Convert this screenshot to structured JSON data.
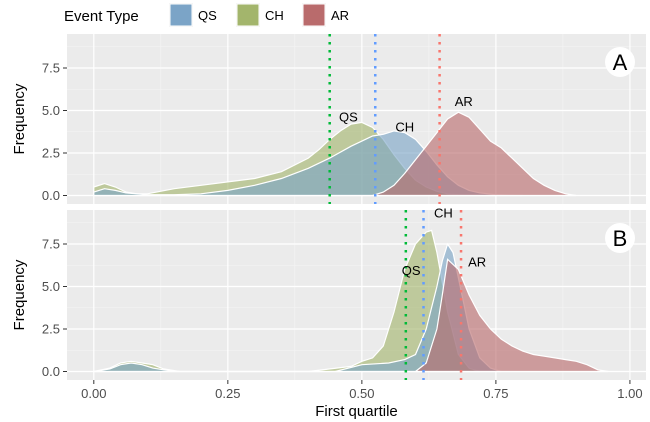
{
  "chart_data": {
    "type": "area",
    "subtype": "density",
    "xlabel": "First quartile",
    "ylabel": "Frequency",
    "xlim": [
      -0.05,
      1.03
    ],
    "ylim": [
      -0.5,
      9.5
    ],
    "x_ticks": [
      0.0,
      0.25,
      0.5,
      0.75,
      1.0
    ],
    "x_tick_labels": [
      "0.00",
      "0.25",
      "0.50",
      "0.75",
      "1.00"
    ],
    "y_ticks": [
      0.0,
      2.5,
      5.0,
      7.5
    ],
    "y_tick_labels": [
      "0.0",
      "2.5",
      "5.0",
      "7.5"
    ],
    "grid": true,
    "legend": {
      "title": "Event Type",
      "position": "top-left",
      "entries": [
        {
          "name": "QS",
          "color": "#7ba4c7"
        },
        {
          "name": "CH",
          "color": "#a3b56c"
        },
        {
          "name": "AR",
          "color": "#b96b6c"
        }
      ]
    },
    "series_colors": {
      "QS": "#7ba4c7",
      "CH": "#a3b56c",
      "AR": "#b96b6c"
    },
    "mean_line_colors": {
      "QS": "#619cff",
      "CH": "#00ba38",
      "AR": "#f8766d"
    },
    "panels": [
      {
        "tag": "A",
        "means": {
          "CH": 0.44,
          "QS": 0.525,
          "AR": 0.645
        },
        "labels": [
          {
            "text": "QS",
            "x": 0.475,
            "y": 4.6
          },
          {
            "text": "CH",
            "x": 0.58,
            "y": 4.0
          },
          {
            "text": "AR",
            "x": 0.69,
            "y": 5.5
          }
        ],
        "series": [
          {
            "name": "CH",
            "x": [
              0.0,
              0.02,
              0.04,
              0.06,
              0.08,
              0.1,
              0.15,
              0.2,
              0.25,
              0.3,
              0.35,
              0.4,
              0.42,
              0.44,
              0.46,
              0.48,
              0.5,
              0.52,
              0.54,
              0.56,
              0.58,
              0.6,
              0.62,
              0.64,
              0.66,
              0.68,
              0.7,
              0.72,
              0.75
            ],
            "y": [
              0.5,
              0.7,
              0.5,
              0.2,
              0.1,
              0.1,
              0.4,
              0.6,
              0.8,
              1.0,
              1.4,
              2.2,
              2.7,
              3.3,
              3.8,
              4.2,
              4.3,
              4.0,
              3.3,
              2.4,
              1.6,
              0.9,
              0.5,
              0.25,
              0.1,
              0.05,
              0.02,
              0.0,
              0.0
            ]
          },
          {
            "name": "QS",
            "x": [
              0.0,
              0.02,
              0.04,
              0.06,
              0.08,
              0.1,
              0.15,
              0.2,
              0.25,
              0.3,
              0.35,
              0.4,
              0.44,
              0.48,
              0.5,
              0.52,
              0.54,
              0.56,
              0.58,
              0.6,
              0.62,
              0.64,
              0.66,
              0.68,
              0.7,
              0.72,
              0.75,
              0.8
            ],
            "y": [
              0.2,
              0.4,
              0.3,
              0.15,
              0.1,
              0.05,
              0.05,
              0.1,
              0.3,
              0.6,
              1.0,
              1.6,
              2.2,
              2.9,
              3.2,
              3.5,
              3.6,
              3.8,
              3.7,
              3.3,
              2.6,
              1.8,
              1.1,
              0.6,
              0.3,
              0.15,
              0.05,
              0.0
            ]
          },
          {
            "name": "AR",
            "x": [
              0.52,
              0.54,
              0.56,
              0.58,
              0.6,
              0.62,
              0.64,
              0.66,
              0.68,
              0.7,
              0.72,
              0.74,
              0.76,
              0.78,
              0.8,
              0.82,
              0.84,
              0.86,
              0.88,
              0.9
            ],
            "y": [
              0.0,
              0.2,
              0.6,
              1.3,
              2.1,
              2.9,
              3.7,
              4.5,
              4.9,
              4.6,
              3.9,
              3.2,
              2.8,
              2.2,
              1.6,
              1.0,
              0.6,
              0.3,
              0.1,
              0.0
            ]
          }
        ]
      },
      {
        "tag": "B",
        "means": {
          "CH": 0.582,
          "QS": 0.615,
          "AR": 0.685
        },
        "labels": [
          {
            "text": "CH",
            "x": 0.652,
            "y": 9.3
          },
          {
            "text": "QS",
            "x": 0.592,
            "y": 5.9
          },
          {
            "text": "AR",
            "x": 0.715,
            "y": 6.4
          }
        ],
        "series": [
          {
            "name": "CH",
            "x": [
              0.0,
              0.03,
              0.05,
              0.07,
              0.09,
              0.11,
              0.13,
              0.16,
              0.2,
              0.4,
              0.48,
              0.5,
              0.52,
              0.54,
              0.56,
              0.58,
              0.6,
              0.62,
              0.63,
              0.64,
              0.66,
              0.68,
              0.7,
              0.72
            ],
            "y": [
              0.0,
              0.2,
              0.5,
              0.6,
              0.5,
              0.4,
              0.15,
              0.0,
              0.0,
              0.0,
              0.3,
              0.6,
              0.8,
              1.5,
              3.5,
              6.0,
              7.5,
              8.2,
              8.3,
              7.0,
              3.5,
              1.0,
              0.2,
              0.0
            ]
          },
          {
            "name": "QS",
            "x": [
              0.0,
              0.03,
              0.05,
              0.07,
              0.09,
              0.11,
              0.13,
              0.16,
              0.2,
              0.45,
              0.5,
              0.55,
              0.58,
              0.6,
              0.62,
              0.64,
              0.65,
              0.66,
              0.67,
              0.68,
              0.7,
              0.72,
              0.74,
              0.76
            ],
            "y": [
              0.0,
              0.15,
              0.4,
              0.5,
              0.4,
              0.2,
              0.1,
              0.0,
              0.0,
              0.0,
              0.4,
              0.5,
              0.7,
              1.0,
              2.5,
              5.0,
              6.5,
              7.5,
              7.0,
              5.5,
              2.5,
              0.8,
              0.2,
              0.0
            ]
          },
          {
            "name": "AR",
            "x": [
              0.6,
              0.62,
              0.64,
              0.65,
              0.66,
              0.68,
              0.7,
              0.72,
              0.74,
              0.76,
              0.78,
              0.8,
              0.82,
              0.84,
              0.86,
              0.88,
              0.9,
              0.92,
              0.94,
              0.96
            ],
            "y": [
              0.0,
              0.5,
              2.5,
              4.5,
              6.6,
              6.0,
              4.5,
              3.3,
              2.5,
              1.9,
              1.5,
              1.2,
              1.0,
              0.9,
              0.8,
              0.7,
              0.6,
              0.4,
              0.1,
              0.0
            ]
          }
        ]
      }
    ]
  }
}
